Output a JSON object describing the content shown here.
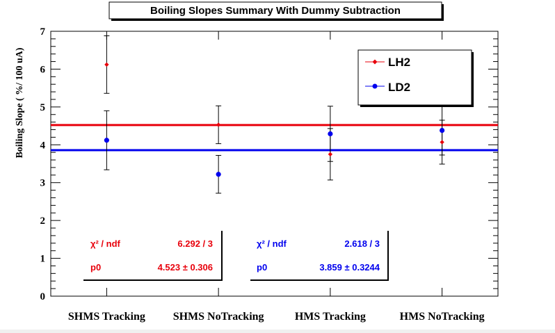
{
  "chart_data": {
    "type": "scatter",
    "title": "Boiling Slopes Summary With Dummy Subtraction",
    "ylabel": "Boiling Slope ( %/ 100 uA)",
    "xlabel": "",
    "ylim": [
      0,
      7
    ],
    "yticks": [
      "0",
      "1",
      "2",
      "3",
      "4",
      "5",
      "6",
      "7"
    ],
    "categories": [
      "SHMS Tracking",
      "SHMS NoTracking",
      "HMS Tracking",
      "HMS NoTracking"
    ],
    "grid": false,
    "legend": "top-right",
    "series": [
      {
        "name": "LH2",
        "color": "#e8000b",
        "marker": "diamond",
        "values": [
          6.12,
          4.53,
          3.75,
          4.07
        ],
        "errors": [
          0.76,
          0.5,
          0.68,
          0.58
        ],
        "fit": {
          "line": 4.523,
          "chi2_label": "χ² / ndf",
          "chi2_value": "6.292 / 3",
          "p0_label": "p0",
          "p0_value": "4.523 ± 0.306"
        }
      },
      {
        "name": "LD2",
        "color": "#0000ee",
        "marker": "circle",
        "values": [
          4.12,
          3.22,
          4.29,
          4.38
        ],
        "errors": [
          0.78,
          0.5,
          0.73,
          0.65
        ],
        "fit": {
          "line": 3.859,
          "chi2_label": "χ² / ndf",
          "chi2_value": "2.618 / 3",
          "p0_label": "p0",
          "p0_value": "3.859 ± 0.3244"
        }
      }
    ]
  }
}
